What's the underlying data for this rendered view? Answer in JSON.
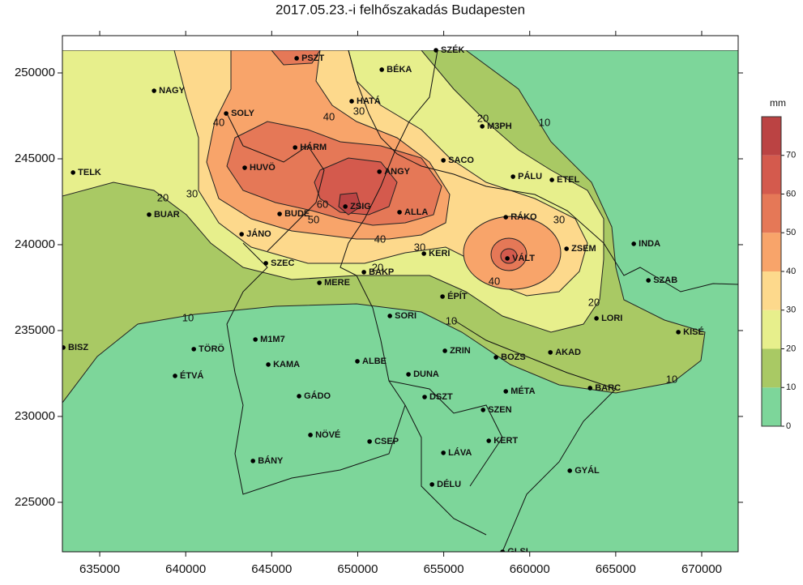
{
  "chart_data": {
    "type": "contour",
    "title": "2017.05.23.-i felhőszakadás Budapesten",
    "xlim": [
      632830,
      672120
    ],
    "ylim": [
      222120,
      252170
    ],
    "xticks": [
      635000,
      640000,
      645000,
      650000,
      655000,
      660000,
      665000,
      670000
    ],
    "yticks": [
      225000,
      230000,
      235000,
      240000,
      245000,
      250000
    ],
    "colorbar": {
      "title": "mm",
      "lim": [
        0,
        80
      ],
      "levels": [
        0,
        10,
        20,
        30,
        40,
        50,
        60,
        70
      ],
      "colors": [
        "#7dd69a",
        "#a9c964",
        "#e7ef8c",
        "#fdd98c",
        "#f8a46a",
        "#e57857",
        "#d45a4d",
        "#bb4343"
      ]
    },
    "stations": {
      "names": [
        "PSZT",
        "BÉKA",
        "SZÉK",
        "NAGY",
        "HATÁ",
        "SOLY",
        "M3PH",
        "HÁRM",
        "SACO",
        "HUVÖ",
        "ANGY",
        "TELK",
        "PÁLU",
        "ETEL",
        "ZSIG",
        "ALLA",
        "BUDE",
        "BUAR",
        "RÁKO",
        "JÁNO",
        "INDA",
        "ZSEM",
        "KERI",
        "VÁLT",
        "SZEC",
        "BAKP",
        "SZAB",
        "MERE",
        "ÉPÍT",
        "SORI",
        "LORI",
        "KISÉ",
        "M1M7",
        "BISZ",
        "TÖRÖ",
        "ZRIN",
        "AKAD",
        "BOZS",
        "ALBE",
        "KAMA",
        "ÉTVÁ",
        "DUNA",
        "MÉTA",
        "BARC",
        "GÁDO",
        "DSZT",
        "SZEN",
        "NÖVÉ",
        "CSEP",
        "KERT",
        "LÁVA",
        "BÁNY",
        "GYÁL",
        "DÉLU",
        "GLSI"
      ],
      "x": [
        646450,
        651400,
        654550,
        638160,
        649650,
        642350,
        657240,
        646360,
        654980,
        643430,
        651260,
        633450,
        659030,
        661290,
        649280,
        652430,
        645460,
        637870,
        658610,
        643250,
        666050,
        662140,
        653850,
        658700,
        644660,
        650360,
        666900,
        647770,
        654930,
        651870,
        663880,
        668640,
        644050,
        632880,
        640470,
        655070,
        661200,
        658040,
        649980,
        644800,
        639380,
        652950,
        658610,
        663510,
        646590,
        653890,
        657290,
        647250,
        650690,
        657620,
        654980,
        643910,
        662330,
        654320,
        658420
      ],
      "y": [
        250850,
        250190,
        251320,
        248960,
        248350,
        247640,
        246890,
        245660,
        244910,
        244480,
        244250,
        244200,
        243960,
        243770,
        242220,
        241890,
        241790,
        241750,
        241600,
        240610,
        240050,
        239760,
        239480,
        239200,
        238920,
        238400,
        237920,
        237780,
        236980,
        235850,
        235710,
        234910,
        234480,
        234010,
        233920,
        233820,
        233730,
        233440,
        233210,
        233020,
        232360,
        232450,
        231460,
        231650,
        231180,
        231130,
        230380,
        228920,
        228540,
        228580,
        227880,
        227410,
        226840,
        226040,
        222120
      ]
    }
  }
}
